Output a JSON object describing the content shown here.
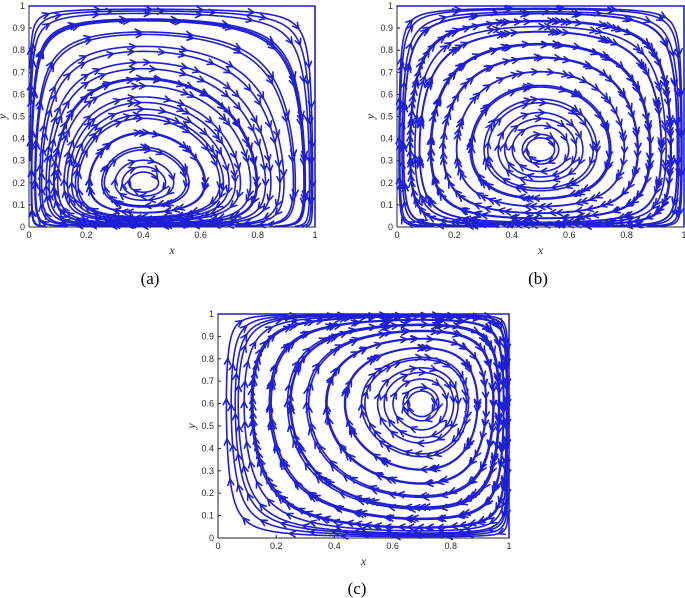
{
  "style": {
    "line_color": "#1f1fd6",
    "axis_color": "#262626"
  },
  "chart_data": [
    {
      "type": "streamline",
      "panel": "a",
      "caption": "(a)",
      "xlabel": "x",
      "ylabel": "y",
      "xlim": [
        0,
        1
      ],
      "ylim": [
        0,
        1
      ],
      "xticks": [
        "0",
        "0.2",
        "0.4",
        "0.6",
        "0.8",
        "1"
      ],
      "yticks": [
        "0",
        "0.1",
        "0.2",
        "0.3",
        "0.4",
        "0.5",
        "0.6",
        "0.7",
        "0.8",
        "0.9",
        "1"
      ],
      "saddle": [
        0.4,
        0.2
      ],
      "circulation": "clockwise"
    },
    {
      "type": "streamline",
      "panel": "b",
      "caption": "(b)",
      "xlabel": "x",
      "ylabel": "y",
      "xlim": [
        0,
        1
      ],
      "ylim": [
        0,
        1
      ],
      "xticks": [
        "0",
        "0.2",
        "0.4",
        "0.6",
        "0.8",
        "1"
      ],
      "yticks": [
        "0",
        "0.1",
        "0.2",
        "0.3",
        "0.4",
        "0.5",
        "0.6",
        "0.7",
        "0.8",
        "0.9",
        "1"
      ],
      "saddle": [
        0.5,
        0.35
      ],
      "circulation": "clockwise"
    },
    {
      "type": "streamline",
      "panel": "c",
      "caption": "(c)",
      "xlabel": "x",
      "ylabel": "y",
      "xlim": [
        0,
        1
      ],
      "ylim": [
        0,
        1
      ],
      "xticks": [
        "0",
        "0.2",
        "0.4",
        "0.6",
        "0.8",
        "1"
      ],
      "yticks": [
        "0",
        "0.1",
        "0.2",
        "0.3",
        "0.4",
        "0.5",
        "0.6",
        "0.7",
        "0.8",
        "0.9",
        "1"
      ],
      "saddle": [
        0.7,
        0.6
      ],
      "circulation": "clockwise"
    }
  ]
}
